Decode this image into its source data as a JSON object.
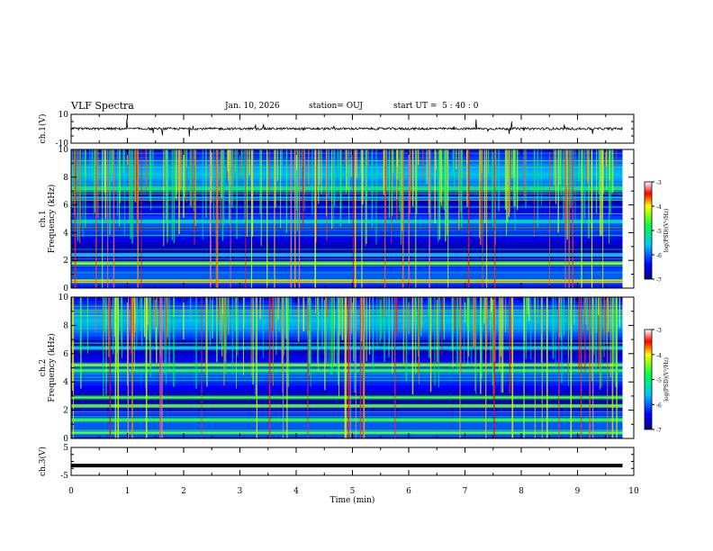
{
  "header": {
    "title": "VLF Spectra",
    "date": "Jan. 10, 2026",
    "station": "station= OUJ",
    "start": "start UT =  5 : 40 : 0"
  },
  "chart_data": [
    {
      "type": "line",
      "panel": "ch1-waveform",
      "ylabel": "ch.1(V)",
      "ylim": [
        -10,
        10
      ],
      "ytick_labels": [
        "10",
        "-10"
      ],
      "xlim": [
        0,
        10
      ]
    },
    {
      "type": "heatmap",
      "panel": "ch1-spectrogram",
      "ylabel_lines": [
        "ch.1",
        "Frequency (kHz)"
      ],
      "ylim": [
        0,
        10
      ],
      "ytick_labels": [
        "0",
        "2",
        "4",
        "6",
        "8",
        "10"
      ],
      "xlim": [
        0,
        10
      ],
      "colorbar": {
        "label": "log(PSD)(V²/Hz)",
        "range": [
          -7,
          -3
        ],
        "tick_labels": [
          "-3",
          "-4",
          "-5",
          "-6",
          "-7"
        ]
      },
      "bands_khz": [
        {
          "f": 0.5,
          "level": -4.2
        },
        {
          "f": 1.8,
          "level": -4.6
        },
        {
          "f": 2.4,
          "level": -5.6
        },
        {
          "f": 4.3,
          "level": -6.6
        },
        {
          "f": 4.8,
          "level": -5.4
        },
        {
          "f": 6.5,
          "level": -6.0
        },
        {
          "f": 7.2,
          "level": -5.2
        }
      ]
    },
    {
      "type": "heatmap",
      "panel": "ch2-spectrogram",
      "ylabel_lines": [
        "ch.2",
        "Frequency (kHz)"
      ],
      "ylim": [
        0,
        10
      ],
      "ytick_labels": [
        "0",
        "2",
        "4",
        "6",
        "8",
        "10"
      ],
      "xlim": [
        0,
        10
      ],
      "colorbar": {
        "label": "log(PSD)(V²/Hz)",
        "range": [
          -7,
          -3
        ],
        "tick_labels": [
          "-3",
          "-4",
          "-5",
          "-6",
          "-7"
        ]
      },
      "bands_khz": [
        {
          "f": 0.4,
          "level": -5.0
        },
        {
          "f": 1.3,
          "level": -4.8
        },
        {
          "f": 2.3,
          "level": -4.7
        },
        {
          "f": 2.9,
          "level": -4.8
        },
        {
          "f": 4.8,
          "level": -4.9
        },
        {
          "f": 5.2,
          "level": -4.6
        },
        {
          "f": 6.4,
          "level": -5.6
        }
      ]
    },
    {
      "type": "line",
      "panel": "ch3-waveform",
      "ylabel": "ch.3(V)",
      "ylim": [
        -5,
        5
      ],
      "ytick_labels": [
        "5",
        "-5"
      ],
      "x": [
        0,
        9.8
      ],
      "y": [
        -1.5,
        -1.5
      ],
      "xlim": [
        0,
        10
      ]
    }
  ],
  "xaxis": {
    "label": "Time (min)",
    "tick_labels": [
      "0",
      "1",
      "2",
      "3",
      "4",
      "5",
      "6",
      "7",
      "8",
      "9",
      "10"
    ]
  }
}
